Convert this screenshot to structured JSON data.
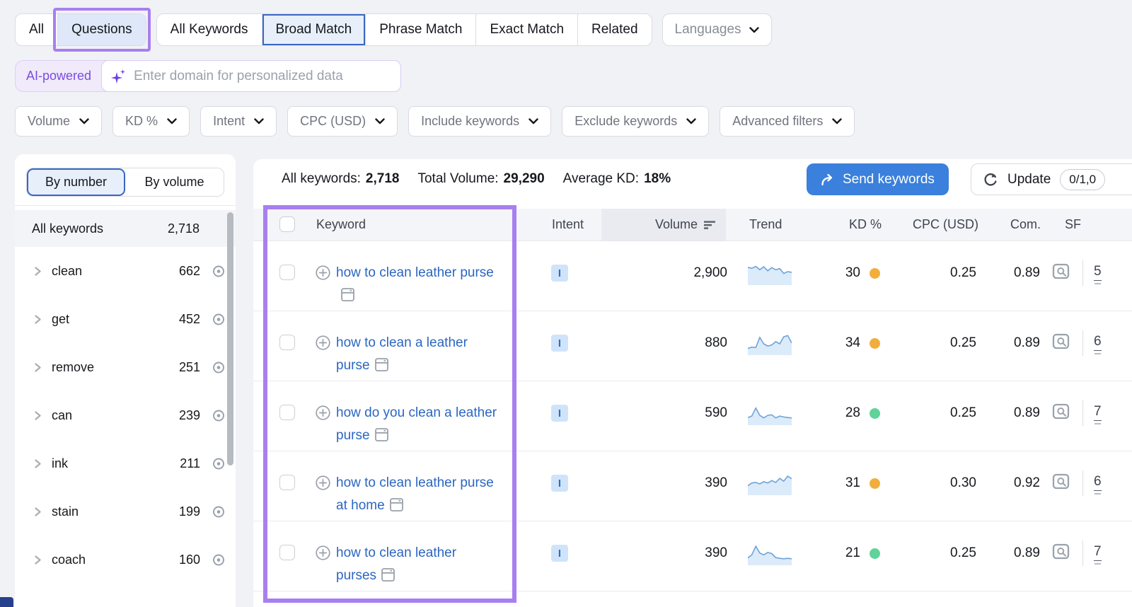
{
  "colors": {
    "annotation_purple": "#a87ff0",
    "accent_blue": "#3a80dc",
    "link_blue": "#2b66c2",
    "kd_orange": "#f2ae3c",
    "kd_green": "#5fd39a",
    "intent_badge_bg": "#cfe4fa",
    "intent_badge_text": "#2f6ec2",
    "sparkline_line": "#6fa3d8",
    "sparkline_fill": "#dcebfa"
  },
  "tabs": {
    "scope_tabs": [
      {
        "label": "All",
        "selected": false,
        "annotated": false
      },
      {
        "label": "Questions",
        "selected": true,
        "annotated": true
      }
    ],
    "match_tabs": [
      {
        "label": "All Keywords",
        "selected": false
      },
      {
        "label": "Broad Match",
        "selected": true
      },
      {
        "label": "Phrase Match",
        "selected": false
      },
      {
        "label": "Exact Match",
        "selected": false
      },
      {
        "label": "Related",
        "selected": false
      }
    ],
    "languages_label": "Languages"
  },
  "ai_bar": {
    "badge": "AI-powered",
    "input_value": "",
    "input_placeholder": "Enter domain for personalized data"
  },
  "filters": [
    {
      "label": "Volume"
    },
    {
      "label": "KD %"
    },
    {
      "label": "Intent"
    },
    {
      "label": "CPC (USD)"
    },
    {
      "label": "Include keywords"
    },
    {
      "label": "Exclude keywords"
    },
    {
      "label": "Advanced filters"
    }
  ],
  "sidebar": {
    "view_toggle": [
      {
        "label": "By number",
        "selected": true
      },
      {
        "label": "By volume",
        "selected": false
      }
    ],
    "all_row": {
      "label": "All keywords",
      "count": "2,718"
    },
    "groups": [
      {
        "label": "clean",
        "count": "662"
      },
      {
        "label": "get",
        "count": "452"
      },
      {
        "label": "remove",
        "count": "251"
      },
      {
        "label": "can",
        "count": "239"
      },
      {
        "label": "ink",
        "count": "211"
      },
      {
        "label": "stain",
        "count": "199"
      },
      {
        "label": "coach",
        "count": "160"
      }
    ]
  },
  "toolbar": {
    "stats": [
      {
        "label": "All keywords:",
        "value": "2,718"
      },
      {
        "label": "Total Volume:",
        "value": "29,290"
      },
      {
        "label": "Average KD:",
        "value": "18%"
      }
    ],
    "send_keywords_label": "Send keywords",
    "update_label": "Update",
    "update_quota": "0/1,0"
  },
  "table": {
    "columns": {
      "keyword": "Keyword",
      "intent": "Intent",
      "volume": "Volume",
      "trend": "Trend",
      "kd": "KD %",
      "cpc": "CPC (USD)",
      "com": "Com.",
      "sf": "SF"
    },
    "sorted_by": "Volume descending",
    "rows": [
      {
        "keyword": "how to clean leather purse",
        "intent": "I",
        "volume": "2,900",
        "kd": "30",
        "kd_color": "orange",
        "cpc": "0.25",
        "com": "0.89",
        "sf": "5",
        "trend": [
          0.85,
          0.8,
          0.9,
          0.72,
          0.88,
          0.66,
          0.84,
          0.72,
          0.78,
          0.52,
          0.62,
          0.58
        ]
      },
      {
        "keyword": "how to clean a leather purse",
        "intent": "I",
        "volume": "880",
        "kd": "34",
        "kd_color": "orange",
        "cpc": "0.25",
        "com": "0.89",
        "sf": "6",
        "trend": [
          0.25,
          0.32,
          0.3,
          0.85,
          0.5,
          0.38,
          0.44,
          0.62,
          0.5,
          0.88,
          0.95,
          0.55
        ]
      },
      {
        "keyword": "how do you clean a leather purse",
        "intent": "I",
        "volume": "590",
        "kd": "28",
        "kd_color": "green",
        "cpc": "0.25",
        "com": "0.89",
        "sf": "7",
        "trend": [
          0.3,
          0.38,
          0.82,
          0.42,
          0.28,
          0.42,
          0.45,
          0.28,
          0.38,
          0.33,
          0.3,
          0.28
        ]
      },
      {
        "keyword": "how to clean leather purse at home",
        "intent": "I",
        "volume": "390",
        "kd": "31",
        "kd_color": "orange",
        "cpc": "0.30",
        "com": "0.92",
        "sf": "6",
        "trend": [
          0.4,
          0.55,
          0.58,
          0.5,
          0.62,
          0.55,
          0.68,
          0.58,
          0.8,
          0.65,
          0.92,
          0.78
        ]
      },
      {
        "keyword": "how to clean leather purses",
        "intent": "I",
        "volume": "390",
        "kd": "21",
        "kd_color": "green",
        "cpc": "0.25",
        "com": "0.89",
        "sf": "7",
        "trend": [
          0.28,
          0.45,
          0.92,
          0.55,
          0.45,
          0.58,
          0.52,
          0.3,
          0.26,
          0.24,
          0.26,
          0.24
        ]
      }
    ]
  }
}
